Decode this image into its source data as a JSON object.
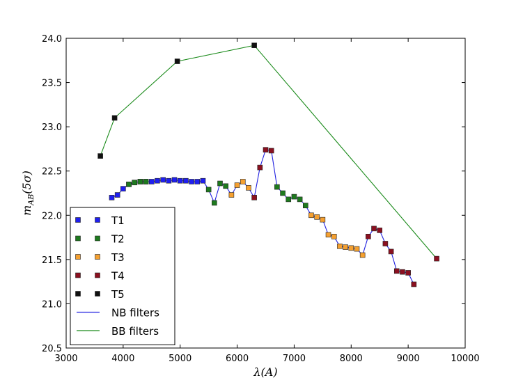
{
  "chart_data": {
    "type": "line",
    "xlabel": "λ(A)",
    "ylabel": "m_AB(5σ)",
    "xlim": [
      3000,
      10000
    ],
    "ylim": [
      20.5,
      24.0
    ],
    "xticks": [
      "3000",
      "4000",
      "5000",
      "6000",
      "7000",
      "8000",
      "9000",
      "10000"
    ],
    "yticks": [
      "20.5",
      "21.0",
      "21.5",
      "22.0",
      "22.5",
      "23.0",
      "23.5",
      "24.0"
    ],
    "grid": false,
    "legend_position": "bottom-left",
    "lines": [
      {
        "name": "NB filters",
        "color": "#2020e0",
        "points": [
          [
            3800,
            22.2
          ],
          [
            3900,
            22.23
          ],
          [
            4000,
            22.3
          ],
          [
            4100,
            22.35
          ],
          [
            4200,
            22.37
          ],
          [
            4300,
            22.38
          ],
          [
            4400,
            22.38
          ],
          [
            4500,
            22.38
          ],
          [
            4600,
            22.39
          ],
          [
            4700,
            22.4
          ],
          [
            4800,
            22.39
          ],
          [
            4900,
            22.4
          ],
          [
            5000,
            22.39
          ],
          [
            5100,
            22.39
          ],
          [
            5200,
            22.38
          ],
          [
            5300,
            22.38
          ],
          [
            5400,
            22.39
          ],
          [
            5500,
            22.29
          ],
          [
            5600,
            22.14
          ],
          [
            5700,
            22.36
          ],
          [
            5800,
            22.33
          ],
          [
            5900,
            22.23
          ],
          [
            6000,
            22.34
          ],
          [
            6100,
            22.38
          ],
          [
            6200,
            22.31
          ],
          [
            6300,
            22.2
          ],
          [
            6400,
            22.54
          ],
          [
            6500,
            22.74
          ],
          [
            6600,
            22.73
          ],
          [
            6700,
            22.32
          ],
          [
            6800,
            22.25
          ],
          [
            6900,
            22.18
          ],
          [
            7000,
            22.21
          ],
          [
            7100,
            22.18
          ],
          [
            7200,
            22.11
          ],
          [
            7300,
            22.0
          ],
          [
            7400,
            21.98
          ],
          [
            7500,
            21.95
          ],
          [
            7600,
            21.78
          ],
          [
            7700,
            21.76
          ],
          [
            7800,
            21.65
          ],
          [
            7900,
            21.64
          ],
          [
            8000,
            21.63
          ],
          [
            8100,
            21.62
          ],
          [
            8200,
            21.55
          ],
          [
            8300,
            21.76
          ],
          [
            8400,
            21.85
          ],
          [
            8500,
            21.83
          ],
          [
            8600,
            21.68
          ],
          [
            8700,
            21.59
          ],
          [
            8800,
            21.37
          ],
          [
            8900,
            21.36
          ],
          [
            9000,
            21.35
          ],
          [
            9100,
            21.22
          ]
        ]
      },
      {
        "name": "BB filters",
        "color": "#1a8a1a",
        "points": [
          [
            3600,
            22.67
          ],
          [
            3850,
            23.1
          ],
          [
            4950,
            23.74
          ],
          [
            6300,
            23.92
          ],
          [
            9500,
            21.51
          ]
        ]
      }
    ],
    "series": [
      {
        "name": "T1",
        "color": "#1f1ff0",
        "points": [
          [
            3800,
            22.2
          ],
          [
            3900,
            22.23
          ],
          [
            4000,
            22.3
          ],
          [
            4100,
            22.35
          ],
          [
            4200,
            22.37
          ],
          [
            4300,
            22.38
          ],
          [
            4400,
            22.38
          ],
          [
            4500,
            22.38
          ],
          [
            4600,
            22.39
          ],
          [
            4700,
            22.4
          ],
          [
            4800,
            22.39
          ],
          [
            4900,
            22.4
          ],
          [
            5000,
            22.39
          ],
          [
            5100,
            22.39
          ],
          [
            5200,
            22.38
          ],
          [
            5300,
            22.38
          ],
          [
            5400,
            22.39
          ]
        ]
      },
      {
        "name": "T2",
        "color": "#1e7a1e",
        "points": [
          [
            4100,
            22.35
          ],
          [
            4200,
            22.37
          ],
          [
            4300,
            22.38
          ],
          [
            4400,
            22.38
          ],
          [
            5500,
            22.29
          ],
          [
            5600,
            22.14
          ],
          [
            5700,
            22.36
          ],
          [
            5800,
            22.33
          ],
          [
            6700,
            22.32
          ],
          [
            6800,
            22.25
          ],
          [
            6900,
            22.18
          ],
          [
            7000,
            22.21
          ],
          [
            7100,
            22.18
          ],
          [
            7200,
            22.11
          ]
        ]
      },
      {
        "name": "T3",
        "color": "#f5a030",
        "points": [
          [
            5900,
            22.23
          ],
          [
            6000,
            22.34
          ],
          [
            6100,
            22.38
          ],
          [
            6200,
            22.31
          ],
          [
            7300,
            22.0
          ],
          [
            7400,
            21.98
          ],
          [
            7500,
            21.95
          ],
          [
            7600,
            21.78
          ],
          [
            7700,
            21.76
          ],
          [
            7800,
            21.65
          ],
          [
            7900,
            21.64
          ],
          [
            8000,
            21.63
          ],
          [
            8100,
            21.62
          ],
          [
            8200,
            21.55
          ]
        ]
      },
      {
        "name": "T4",
        "color": "#8b1020",
        "points": [
          [
            6300,
            22.2
          ],
          [
            6400,
            22.54
          ],
          [
            6500,
            22.74
          ],
          [
            6600,
            22.73
          ],
          [
            8300,
            21.76
          ],
          [
            8400,
            21.85
          ],
          [
            8500,
            21.83
          ],
          [
            8600,
            21.68
          ],
          [
            8700,
            21.59
          ],
          [
            8800,
            21.37
          ],
          [
            8900,
            21.36
          ],
          [
            9000,
            21.35
          ],
          [
            9100,
            21.22
          ],
          [
            9500,
            21.51
          ]
        ]
      },
      {
        "name": "T5",
        "color": "#111111",
        "points": [
          [
            3600,
            22.67
          ],
          [
            3850,
            23.1
          ],
          [
            4950,
            23.74
          ],
          [
            6300,
            23.92
          ]
        ]
      }
    ],
    "legend": [
      {
        "label": "T1",
        "kind": "marker",
        "color": "#1f1ff0"
      },
      {
        "label": "T2",
        "kind": "marker",
        "color": "#1e7a1e"
      },
      {
        "label": "T3",
        "kind": "marker",
        "color": "#f5a030"
      },
      {
        "label": "T4",
        "kind": "marker",
        "color": "#8b1020"
      },
      {
        "label": "T5",
        "kind": "marker",
        "color": "#111111"
      },
      {
        "label": "NB filters",
        "kind": "line",
        "color": "#2020e0"
      },
      {
        "label": "BB filters",
        "kind": "line",
        "color": "#1a8a1a"
      }
    ]
  }
}
